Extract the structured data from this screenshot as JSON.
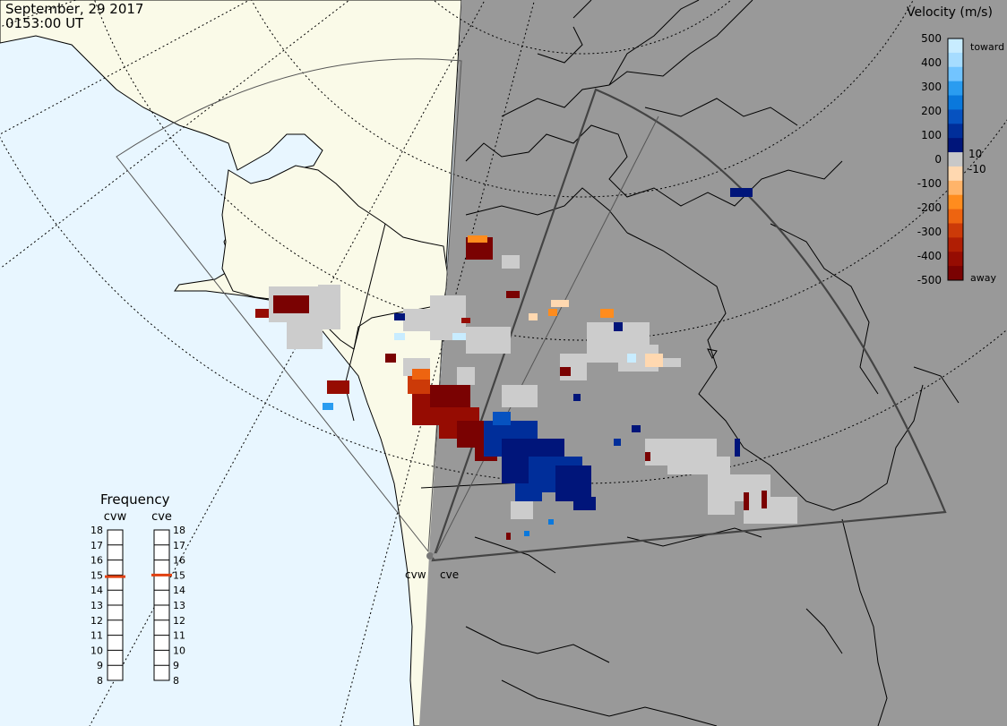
{
  "header": {
    "date": "September, 29 2017",
    "time": "0153:00 UT"
  },
  "velocity_legend": {
    "title": "Velocity (m/s)",
    "ticks": [
      "500",
      "400",
      "300",
      "200",
      "100",
      "0",
      "-100",
      "-200",
      "-300",
      "-400",
      "-500"
    ],
    "inner_labels": [
      "10",
      "-10"
    ],
    "toward_label": "toward",
    "away_label": "away",
    "colors_toward": [
      "#c8ecff",
      "#a6dcff",
      "#72c4ff",
      "#2a9cf0",
      "#0a78dc",
      "#0652c0",
      "#002e9a",
      "#00157a"
    ],
    "colors_away": [
      "#ffd8b0",
      "#ffb46a",
      "#ff8c1e",
      "#ee6410",
      "#cc3a08",
      "#b01e04",
      "#960c02",
      "#7a0202"
    ],
    "zero_color": "#c8c8c8"
  },
  "frequency_panel": {
    "title": "Frequency",
    "radar_left": "cvw",
    "radar_right": "cve",
    "scale": [
      "18",
      "17",
      "16",
      "15",
      "14",
      "13",
      "12",
      "11",
      "10",
      "9",
      "8"
    ],
    "cvw_frequency_mhz": 14.9,
    "cve_frequency_mhz": 15.0,
    "marker_color": "#e04010"
  },
  "radars": [
    {
      "name": "cvw"
    },
    {
      "name": "cve"
    }
  ],
  "map_colors": {
    "ocean": "#e8f6ff",
    "land": "#fafae8",
    "night": "#999999",
    "ground_scatter": "#cccccc"
  }
}
